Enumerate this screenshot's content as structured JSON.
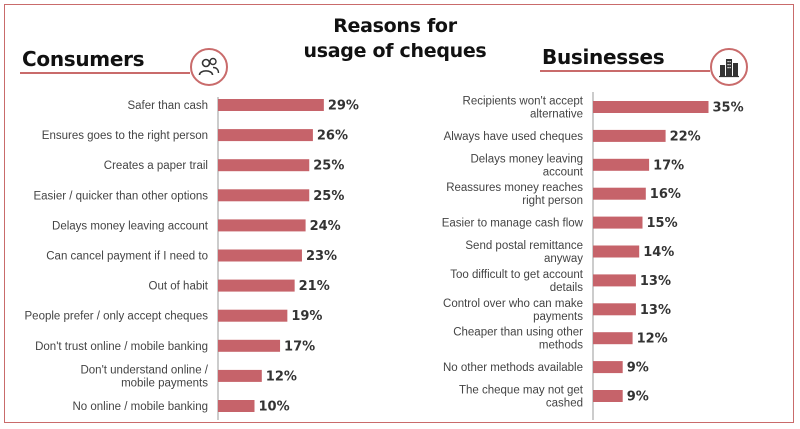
{
  "title_line1": "Reasons for",
  "title_line2": "usage of cheques",
  "colors": {
    "bar": "#c6636a",
    "accent": "#c96b6b"
  },
  "panels": {
    "consumers": {
      "title": "Consumers",
      "icon": "people-icon"
    },
    "businesses": {
      "title": "Businesses",
      "icon": "buildings-icon"
    }
  },
  "chart_data": [
    {
      "type": "bar",
      "orientation": "horizontal",
      "title": "Consumers",
      "categories": [
        [
          "Safer than cash"
        ],
        [
          "Ensures goes to the right person"
        ],
        [
          "Creates a paper trail"
        ],
        [
          "Easier / quicker than other options"
        ],
        [
          "Delays money leaving account"
        ],
        [
          "Can cancel payment if I need to"
        ],
        [
          "Out of habit"
        ],
        [
          "People prefer / only accept cheques"
        ],
        [
          "Don't trust online / mobile banking"
        ],
        [
          "Don't understand online /",
          "mobile payments"
        ],
        [
          "No online / mobile banking"
        ]
      ],
      "values": [
        29,
        26,
        25,
        25,
        24,
        23,
        21,
        19,
        17,
        12,
        10
      ],
      "value_labels": [
        "29%",
        "26%",
        "25%",
        "25%",
        "24%",
        "23%",
        "21%",
        "19%",
        "17%",
        "12%",
        "10%"
      ]
    },
    {
      "type": "bar",
      "orientation": "horizontal",
      "title": "Businesses",
      "categories": [
        [
          "Recipients won't accept",
          "alternative"
        ],
        [
          "Always have used cheques"
        ],
        [
          "Delays money leaving",
          "account"
        ],
        [
          "Reassures money reaches",
          "right person"
        ],
        [
          "Easier to manage cash flow"
        ],
        [
          "Send postal remittance",
          "anyway"
        ],
        [
          "Too difficult to get account",
          "details"
        ],
        [
          "Control over who can make",
          "payments"
        ],
        [
          "Cheaper than using other",
          "methods"
        ],
        [
          "No other methods available"
        ],
        [
          "The cheque may not get",
          "cashed"
        ]
      ],
      "values": [
        35,
        22,
        17,
        16,
        15,
        14,
        13,
        13,
        12,
        9,
        9
      ],
      "value_labels": [
        "35%",
        "22%",
        "17%",
        "16%",
        "15%",
        "14%",
        "13%",
        "13%",
        "12%",
        "9%",
        "9%"
      ]
    }
  ]
}
